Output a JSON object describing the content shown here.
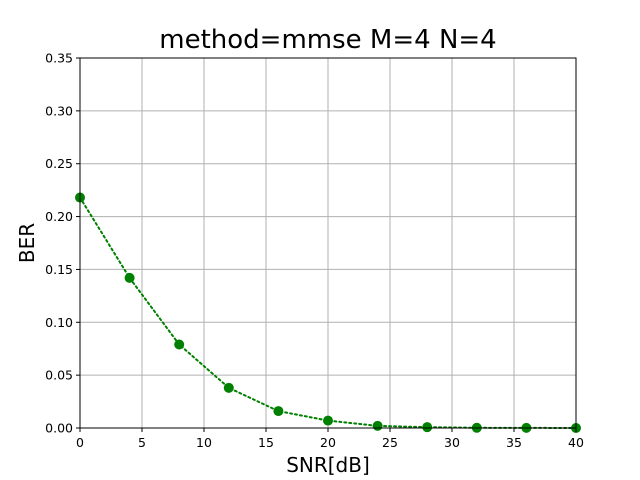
{
  "chart_data": {
    "type": "line",
    "title": "method=mmse M=4 N=4",
    "xlabel": "SNR[dB]",
    "ylabel": "BER",
    "xlim": [
      0,
      40
    ],
    "ylim": [
      0,
      0.35
    ],
    "xticks": [
      0,
      5,
      10,
      15,
      20,
      25,
      30,
      35,
      40
    ],
    "xtick_labels": [
      "0",
      "5",
      "10",
      "15",
      "20",
      "25",
      "30",
      "35",
      "40"
    ],
    "yticks": [
      0,
      0.05,
      0.1,
      0.15,
      0.2,
      0.25,
      0.3,
      0.35
    ],
    "ytick_labels": [
      "0.00",
      "0.05",
      "0.10",
      "0.15",
      "0.20",
      "0.25",
      "0.30",
      "0.35"
    ],
    "grid": true,
    "series": [
      {
        "color": "#008000",
        "line_style": "dotted",
        "marker": "circle",
        "x": [
          0,
          4,
          8,
          12,
          16,
          20,
          24,
          28,
          32,
          36,
          40
        ],
        "y": [
          0.218,
          0.142,
          0.079,
          0.038,
          0.016,
          0.007,
          0.002,
          0.0008,
          0.0002,
          0.0001,
          0.0
        ]
      }
    ]
  }
}
